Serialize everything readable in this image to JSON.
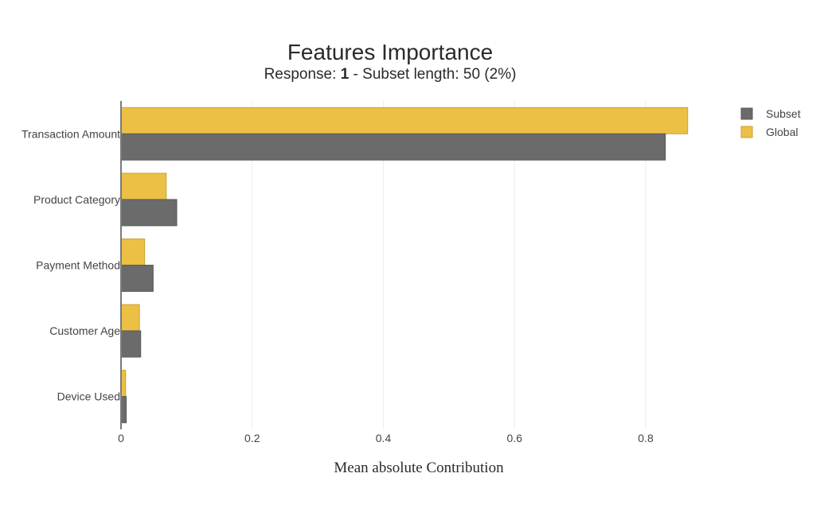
{
  "chart_data": {
    "type": "bar",
    "orientation": "horizontal",
    "barmode": "group",
    "title": "Features Importance",
    "subtitle": {
      "prefix": "Response: ",
      "response_value": "1",
      "suffix": " - Subset length: 50 (2%)"
    },
    "xlabel": "Mean absolute Contribution",
    "ylabel": "",
    "xlim": [
      0,
      0.9
    ],
    "x_ticks": [
      0,
      0.2,
      0.4,
      0.6,
      0.8
    ],
    "x_tick_labels": [
      "0",
      "0.2",
      "0.4",
      "0.6",
      "0.8"
    ],
    "grid": true,
    "legend_position": "top-right",
    "categories": [
      "Transaction Amount",
      "Product Category",
      "Payment Method",
      "Customer Age",
      "Device Used"
    ],
    "series": [
      {
        "name": "Subset",
        "color": "#6b6b6b",
        "values": [
          0.83,
          0.085,
          0.049,
          0.03,
          0.008
        ]
      },
      {
        "name": "Global",
        "color": "#ebc044",
        "values": [
          0.864,
          0.069,
          0.036,
          0.028,
          0.007
        ]
      }
    ]
  }
}
